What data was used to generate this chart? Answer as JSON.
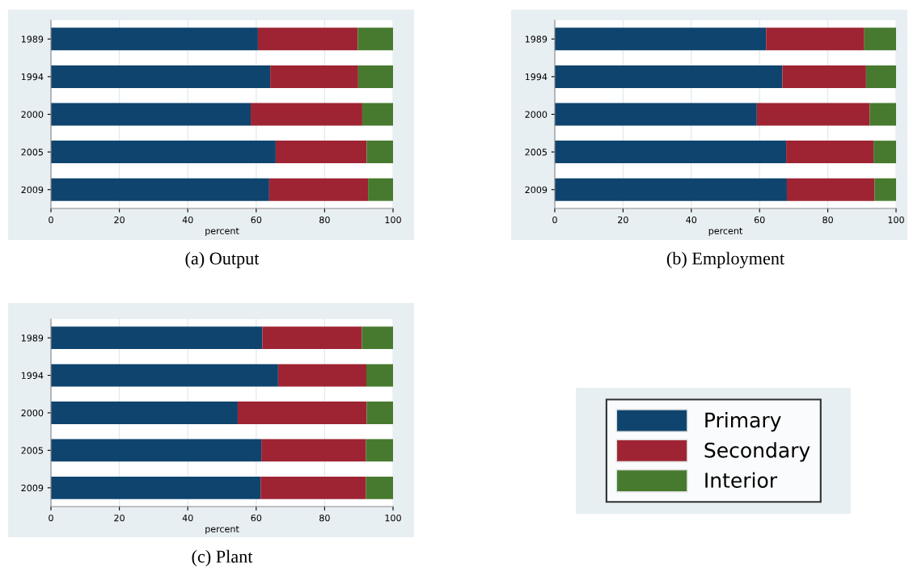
{
  "chart_data": [
    {
      "type": "bar",
      "orientation": "horizontal",
      "stacked": true,
      "title": "(a) Output",
      "xlabel": "percent",
      "categories": [
        "1989",
        "1994",
        "2000",
        "2005",
        "2009"
      ],
      "xlim": [
        0,
        100
      ],
      "xticks": [
        0,
        20,
        40,
        60,
        80,
        100
      ],
      "grid": "x",
      "legend": false,
      "series": [
        {
          "color": "#0f446e",
          "values": [
            60.5,
            64.1,
            58.4,
            65.7,
            63.8
          ]
        },
        {
          "color": "#9e2433",
          "values": [
            29.2,
            25.7,
            32.6,
            26.6,
            28.9
          ]
        },
        {
          "color": "#477a2e",
          "values": [
            10.3,
            10.2,
            9.0,
            7.7,
            7.3
          ]
        }
      ]
    },
    {
      "type": "bar",
      "orientation": "horizontal",
      "stacked": true,
      "title": "(b) Employment",
      "xlabel": "percent",
      "categories": [
        "1989",
        "1994",
        "2000",
        "2005",
        "2009"
      ],
      "xlim": [
        0,
        100
      ],
      "xticks": [
        0,
        20,
        40,
        60,
        80,
        100
      ],
      "grid": "x",
      "legend": false,
      "series": [
        {
          "color": "#0f446e",
          "values": [
            61.9,
            66.7,
            59.2,
            67.8,
            68.0
          ]
        },
        {
          "color": "#9e2433",
          "values": [
            28.8,
            24.5,
            33.1,
            25.6,
            25.7
          ]
        },
        {
          "color": "#477a2e",
          "values": [
            9.3,
            8.8,
            7.7,
            6.6,
            6.3
          ]
        }
      ]
    },
    {
      "type": "bar",
      "orientation": "horizontal",
      "stacked": true,
      "title": "(c) Plant",
      "xlabel": "percent",
      "categories": [
        "1989",
        "1994",
        "2000",
        "2005",
        "2009"
      ],
      "xlim": [
        0,
        100
      ],
      "xticks": [
        0,
        20,
        40,
        60,
        80,
        100
      ],
      "grid": "x",
      "legend": "right",
      "series": [
        {
          "name": "Primary",
          "color": "#0f446e",
          "values": [
            61.8,
            66.4,
            54.6,
            61.5,
            61.3
          ]
        },
        {
          "name": "Secondary",
          "color": "#9e2433",
          "values": [
            29.1,
            25.8,
            37.7,
            30.6,
            30.8
          ]
        },
        {
          "name": "Interior",
          "color": "#477a2e",
          "values": [
            9.1,
            7.8,
            7.7,
            7.9,
            7.9
          ]
        }
      ]
    }
  ]
}
